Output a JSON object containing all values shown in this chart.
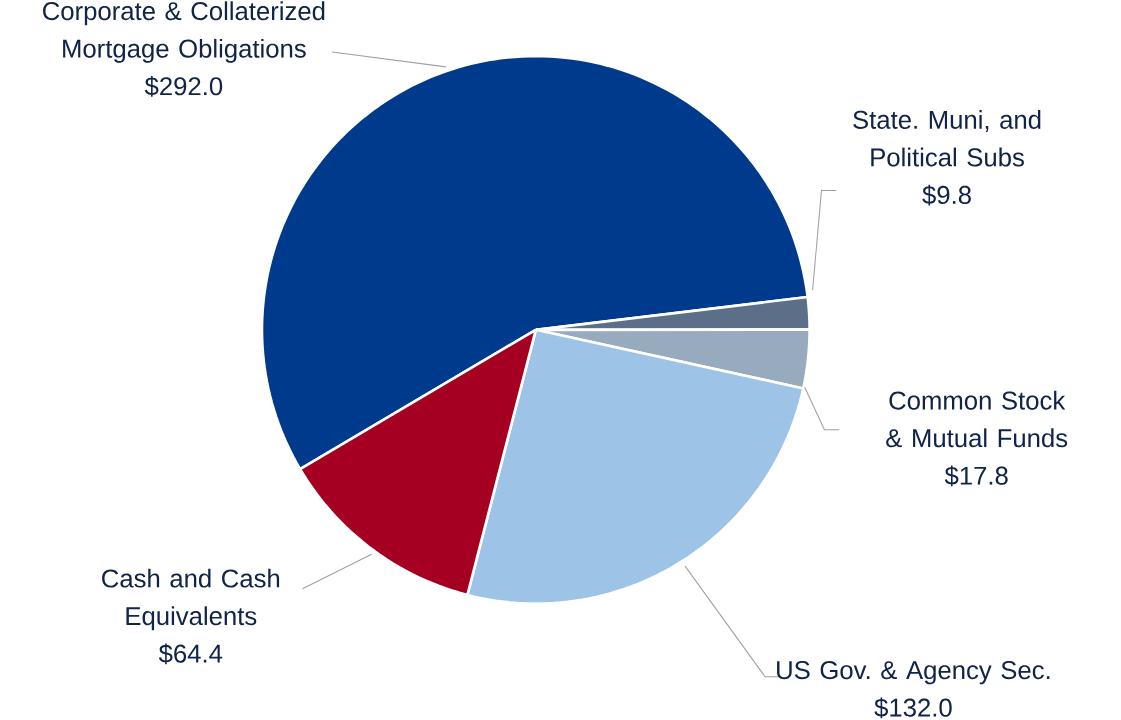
{
  "chart_data": {
    "type": "pie",
    "categories": [
      "Corporate & Collaterized Mortgage Obligations",
      "State. Muni, and Political Subs",
      "Common Stock & Mutual Funds",
      "US Gov. & Agency Sec.",
      "Cash and Cash Equivalents"
    ],
    "values": [
      292.0,
      9.8,
      17.8,
      132.0,
      64.4
    ],
    "value_labels": [
      "$292.0",
      "$9.8",
      "$17.8",
      "$132.0",
      "$64.4"
    ],
    "colors": [
      "#003a8c",
      "#5b6f88",
      "#98abbe",
      "#9dc3e6",
      "#a50021"
    ]
  }
}
